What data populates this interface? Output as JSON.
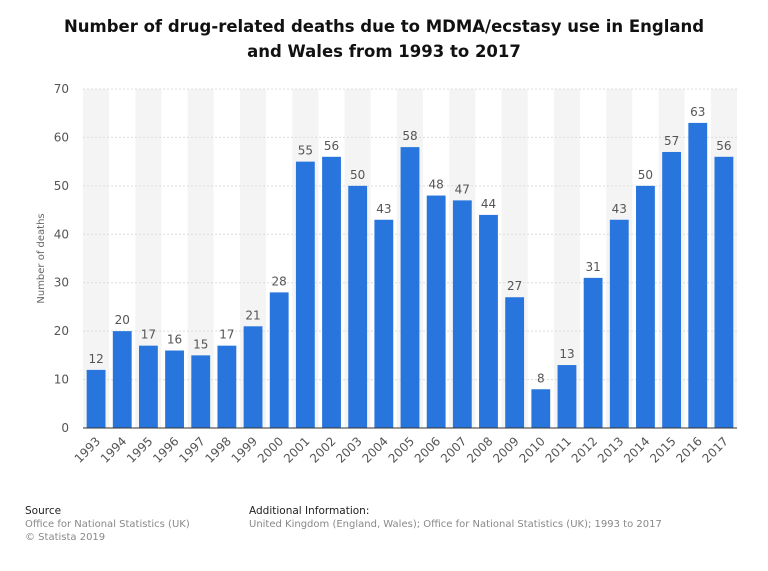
{
  "chart_data": {
    "type": "bar",
    "title": "Number of drug-related deaths due to MDMA/ecstasy use in England and Wales from 1993 to 2017",
    "y_label": "Number of deaths",
    "categories": [
      "1993",
      "1994",
      "1995",
      "1996",
      "1997",
      "1998",
      "1999",
      "2000",
      "2001",
      "2002",
      "2003",
      "2004",
      "2005",
      "2006",
      "2007",
      "2008",
      "2009",
      "2010",
      "2011",
      "2012",
      "2013",
      "2014",
      "2015",
      "2016",
      "2017"
    ],
    "values": [
      12,
      20,
      17,
      16,
      15,
      17,
      21,
      28,
      55,
      56,
      50,
      43,
      58,
      48,
      47,
      44,
      27,
      8,
      13,
      31,
      43,
      50,
      57,
      63,
      56
    ],
    "color": "#2876dd",
    "ylim": [
      0,
      70
    ],
    "yticks": [
      0,
      10,
      20,
      30,
      40,
      50,
      60,
      70
    ],
    "grid": true
  },
  "footer": {
    "source_heading": "Source",
    "source_lines": [
      "Office for National Statistics (UK)",
      "© Statista 2019"
    ],
    "info_heading": "Additional Information:",
    "info_text": "United Kingdom (England, Wales); Office for National Statistics (UK); 1993 to 2017"
  }
}
